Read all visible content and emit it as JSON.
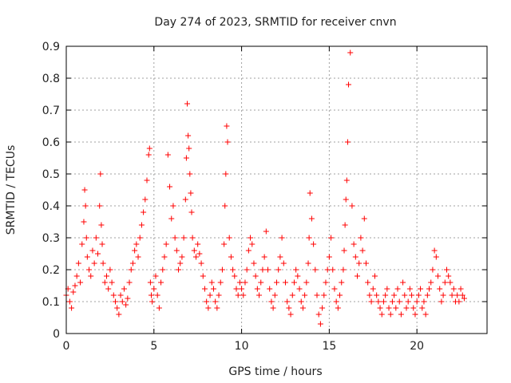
{
  "chart_data": {
    "type": "scatter",
    "title": "Day 274 of 2023, SRMTID for receiver cnvn",
    "xlabel": "GPS time / hours",
    "ylabel": "SRMTID / TECUs",
    "xlim": [
      0,
      24
    ],
    "ylim": [
      0,
      0.9
    ],
    "xticks": [
      0,
      5,
      10,
      15,
      20
    ],
    "yticks": [
      0,
      0.1,
      0.2,
      0.3,
      0.4,
      0.5,
      0.6,
      0.7,
      0.8,
      0.9
    ],
    "grid": true,
    "marker": "plus",
    "color": "#ff0000",
    "series": [
      {
        "name": "SRMTID",
        "x": [
          0.0,
          0.1,
          0.2,
          0.3,
          0.4,
          0.5,
          0.6,
          0.7,
          0.8,
          0.9,
          1.0,
          1.05,
          1.1,
          1.15,
          1.2,
          1.3,
          1.4,
          1.5,
          1.6,
          1.7,
          1.8,
          1.9,
          1.95,
          2.0,
          2.05,
          2.1,
          2.2,
          2.3,
          2.4,
          2.5,
          2.6,
          2.7,
          2.8,
          2.9,
          3.0,
          3.1,
          3.2,
          3.3,
          3.4,
          3.5,
          3.6,
          3.7,
          3.8,
          3.9,
          4.0,
          4.1,
          4.2,
          4.3,
          4.4,
          4.5,
          4.6,
          4.7,
          4.75,
          4.8,
          4.85,
          4.9,
          5.0,
          5.1,
          5.2,
          5.3,
          5.4,
          5.5,
          5.6,
          5.7,
          5.8,
          5.9,
          6.0,
          6.1,
          6.2,
          6.3,
          6.4,
          6.5,
          6.6,
          6.7,
          6.8,
          6.85,
          6.9,
          6.95,
          7.0,
          7.05,
          7.1,
          7.15,
          7.2,
          7.3,
          7.4,
          7.5,
          7.6,
          7.7,
          7.8,
          7.9,
          8.0,
          8.1,
          8.2,
          8.3,
          8.4,
          8.5,
          8.6,
          8.7,
          8.8,
          8.9,
          9.0,
          9.05,
          9.1,
          9.15,
          9.2,
          9.3,
          9.4,
          9.5,
          9.6,
          9.7,
          9.8,
          9.9,
          10.0,
          10.1,
          10.2,
          10.3,
          10.4,
          10.5,
          10.6,
          10.7,
          10.8,
          10.9,
          11.0,
          11.1,
          11.2,
          11.3,
          11.4,
          11.5,
          11.6,
          11.7,
          11.8,
          11.9,
          12.0,
          12.1,
          12.2,
          12.3,
          12.4,
          12.5,
          12.6,
          12.7,
          12.8,
          12.9,
          13.0,
          13.1,
          13.2,
          13.3,
          13.4,
          13.5,
          13.6,
          13.7,
          13.8,
          13.85,
          13.9,
          14.0,
          14.1,
          14.2,
          14.3,
          14.4,
          14.5,
          14.6,
          14.7,
          14.8,
          14.9,
          15.0,
          15.1,
          15.2,
          15.3,
          15.4,
          15.5,
          15.6,
          15.7,
          15.8,
          15.85,
          15.9,
          15.95,
          16.0,
          16.05,
          16.1,
          16.2,
          16.3,
          16.4,
          16.5,
          16.6,
          16.7,
          16.8,
          16.9,
          17.0,
          17.1,
          17.2,
          17.3,
          17.4,
          17.5,
          17.6,
          17.7,
          17.8,
          17.9,
          18.0,
          18.1,
          18.2,
          18.3,
          18.4,
          18.5,
          18.6,
          18.7,
          18.8,
          18.9,
          19.0,
          19.1,
          19.2,
          19.3,
          19.4,
          19.5,
          19.6,
          19.7,
          19.8,
          19.9,
          20.0,
          20.1,
          20.2,
          20.3,
          20.4,
          20.5,
          20.6,
          20.7,
          20.8,
          20.9,
          21.0,
          21.1,
          21.2,
          21.3,
          21.4,
          21.5,
          21.6,
          21.7,
          21.8,
          21.9,
          22.0,
          22.1,
          22.2,
          22.3,
          22.4,
          22.5,
          22.6,
          22.7
        ],
        "y": [
          0.12,
          0.14,
          0.1,
          0.08,
          0.13,
          0.15,
          0.18,
          0.22,
          0.16,
          0.28,
          0.35,
          0.45,
          0.4,
          0.3,
          0.24,
          0.2,
          0.18,
          0.26,
          0.22,
          0.3,
          0.25,
          0.4,
          0.5,
          0.34,
          0.28,
          0.22,
          0.16,
          0.18,
          0.14,
          0.2,
          0.16,
          0.12,
          0.1,
          0.08,
          0.06,
          0.12,
          0.1,
          0.14,
          0.09,
          0.11,
          0.16,
          0.2,
          0.22,
          0.26,
          0.28,
          0.24,
          0.3,
          0.34,
          0.38,
          0.42,
          0.48,
          0.56,
          0.58,
          0.16,
          0.12,
          0.1,
          0.14,
          0.18,
          0.12,
          0.08,
          0.16,
          0.2,
          0.24,
          0.28,
          0.56,
          0.46,
          0.36,
          0.4,
          0.3,
          0.26,
          0.2,
          0.22,
          0.24,
          0.3,
          0.42,
          0.55,
          0.72,
          0.62,
          0.58,
          0.5,
          0.44,
          0.38,
          0.3,
          0.26,
          0.24,
          0.28,
          0.25,
          0.22,
          0.18,
          0.14,
          0.1,
          0.08,
          0.12,
          0.16,
          0.14,
          0.1,
          0.08,
          0.12,
          0.16,
          0.2,
          0.28,
          0.4,
          0.5,
          0.65,
          0.6,
          0.3,
          0.24,
          0.2,
          0.18,
          0.14,
          0.12,
          0.16,
          0.14,
          0.12,
          0.16,
          0.2,
          0.26,
          0.3,
          0.28,
          0.22,
          0.18,
          0.14,
          0.12,
          0.16,
          0.2,
          0.24,
          0.32,
          0.2,
          0.14,
          0.1,
          0.08,
          0.12,
          0.16,
          0.2,
          0.24,
          0.3,
          0.22,
          0.16,
          0.1,
          0.08,
          0.06,
          0.12,
          0.16,
          0.2,
          0.18,
          0.14,
          0.1,
          0.08,
          0.12,
          0.16,
          0.22,
          0.3,
          0.44,
          0.36,
          0.28,
          0.2,
          0.12,
          0.06,
          0.03,
          0.08,
          0.12,
          0.16,
          0.2,
          0.24,
          0.3,
          0.2,
          0.14,
          0.1,
          0.08,
          0.12,
          0.16,
          0.2,
          0.26,
          0.34,
          0.42,
          0.48,
          0.6,
          0.78,
          0.88,
          0.4,
          0.28,
          0.24,
          0.18,
          0.22,
          0.3,
          0.26,
          0.36,
          0.22,
          0.16,
          0.12,
          0.1,
          0.14,
          0.18,
          0.12,
          0.1,
          0.08,
          0.06,
          0.1,
          0.12,
          0.14,
          0.08,
          0.06,
          0.1,
          0.12,
          0.08,
          0.14,
          0.1,
          0.06,
          0.16,
          0.12,
          0.08,
          0.1,
          0.14,
          0.12,
          0.08,
          0.06,
          0.1,
          0.12,
          0.14,
          0.08,
          0.1,
          0.06,
          0.12,
          0.14,
          0.16,
          0.2,
          0.26,
          0.24,
          0.18,
          0.14,
          0.1,
          0.12,
          0.16,
          0.2,
          0.18,
          0.16,
          0.12,
          0.14,
          0.1,
          0.12,
          0.1,
          0.14,
          0.12,
          0.11
        ]
      }
    ]
  }
}
